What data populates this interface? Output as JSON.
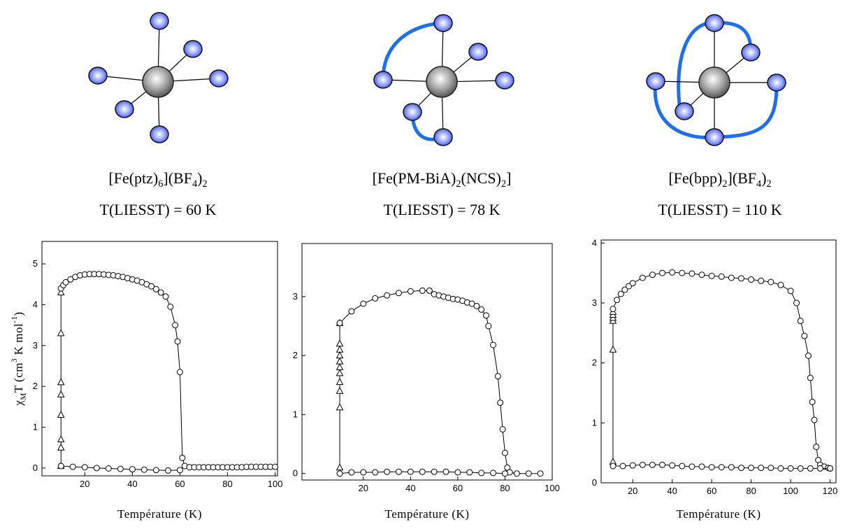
{
  "chart_data": [
    {
      "type": "scatter",
      "title": [
        {
          "text": "[Fe(ptz)"
        },
        {
          "text": "6",
          "sub": true
        },
        {
          "text": "](BF"
        },
        {
          "text": "4",
          "sub": true
        },
        {
          "text": ")"
        },
        {
          "text": "2",
          "sub": true
        }
      ],
      "subtitle": "T(LIESST) = 60 K",
      "xlabel": "Température (K)",
      "ylabel": [
        {
          "text": "χ"
        },
        {
          "text": "M",
          "sub": true
        },
        {
          "text": "T (cm"
        },
        {
          "text": "3",
          "sup": true
        },
        {
          "text": " K mol"
        },
        {
          "text": "-1",
          "sup": true
        },
        {
          "text": ")"
        }
      ],
      "xlim": [
        2,
        101
      ],
      "ylim": [
        -0.19,
        5.55
      ],
      "xticks": [
        20,
        40,
        60,
        80,
        100
      ],
      "yticks": [
        0,
        1,
        2,
        3,
        4,
        5
      ],
      "series": [
        {
          "marker": "triangle",
          "color": "#000000",
          "x": [
            10,
            10,
            10,
            10,
            10,
            10,
            10,
            10
          ],
          "values": [
            0.05,
            0.5,
            0.7,
            1.3,
            1.8,
            2.1,
            3.3,
            4.3
          ]
        },
        {
          "marker": "circle",
          "color": "#000000",
          "x": [
            10,
            11,
            12,
            14,
            16,
            18,
            20,
            22,
            24,
            26,
            28,
            30,
            32,
            34,
            36,
            38,
            40,
            42,
            44,
            46,
            48,
            50,
            52,
            54,
            56,
            58,
            59,
            60,
            61,
            62,
            64,
            66,
            68,
            70,
            72,
            74,
            76,
            78,
            80,
            82,
            84,
            86,
            88,
            90,
            92,
            94,
            96,
            98,
            100
          ],
          "values": [
            4.4,
            4.48,
            4.55,
            4.62,
            4.68,
            4.72,
            4.74,
            4.75,
            4.75,
            4.75,
            4.74,
            4.73,
            4.72,
            4.7,
            4.68,
            4.65,
            4.62,
            4.59,
            4.55,
            4.5,
            4.45,
            4.38,
            4.3,
            4.2,
            3.95,
            3.5,
            3.1,
            2.35,
            0.25,
            0.05,
            0.02,
            0.02,
            0.02,
            0.02,
            0.02,
            0.02,
            0.02,
            0.02,
            0.02,
            0.02,
            0.02,
            0.02,
            0.03,
            0.03,
            0.03,
            0.03,
            0.03,
            0.03,
            0.03
          ]
        },
        {
          "marker": "circle",
          "color": "#000000",
          "x": [
            10,
            15,
            20,
            25,
            30,
            35,
            40,
            45,
            50,
            55,
            60
          ],
          "values": [
            0.05,
            0.03,
            0.02,
            0.0,
            -0.01,
            -0.02,
            -0.03,
            -0.04,
            -0.05,
            -0.06,
            -0.05
          ]
        }
      ]
    },
    {
      "type": "scatter",
      "title": [
        {
          "text": "[Fe(PM-BiA)"
        },
        {
          "text": "2",
          "sub": true
        },
        {
          "text": "(NCS)"
        },
        {
          "text": "2",
          "sub": true
        },
        {
          "text": "]"
        }
      ],
      "subtitle": "T(LIESST) = 78 K",
      "xlabel": "Température (K)",
      "xlim": [
        -6,
        100
      ],
      "ylim": [
        -0.11,
        3.9
      ],
      "xticks": [
        20,
        40,
        60,
        80,
        100
      ],
      "yticks": [
        0,
        1,
        2,
        3
      ],
      "series": [
        {
          "marker": "triangle",
          "color": "#000000",
          "x": [
            10,
            10,
            10,
            10,
            10,
            10,
            10,
            10,
            10,
            10,
            10
          ],
          "values": [
            0.1,
            1.12,
            1.4,
            1.55,
            1.7,
            1.8,
            1.9,
            2.0,
            2.1,
            2.2,
            2.55
          ]
        },
        {
          "marker": "circle",
          "color": "#000000",
          "x": [
            10,
            15,
            20,
            25,
            30,
            35,
            40,
            45,
            48,
            50,
            52,
            54,
            56,
            58,
            60,
            62,
            64,
            66,
            68,
            70,
            72,
            73,
            75,
            77,
            78,
            79,
            80,
            81,
            82,
            85,
            90,
            95
          ],
          "values": [
            2.55,
            2.75,
            2.88,
            2.97,
            3.02,
            3.06,
            3.09,
            3.1,
            3.1,
            3.04,
            3.02,
            3.0,
            2.98,
            2.96,
            2.95,
            2.93,
            2.9,
            2.88,
            2.84,
            2.78,
            2.68,
            2.5,
            2.18,
            1.65,
            1.2,
            0.75,
            0.35,
            0.1,
            0.02,
            0.0,
            0.0,
            0.0
          ]
        },
        {
          "marker": "circle",
          "color": "#000000",
          "x": [
            10,
            15,
            20,
            25,
            30,
            35,
            40,
            45,
            50,
            55,
            60,
            65,
            70,
            75,
            80
          ],
          "values": [
            0.0,
            0.02,
            0.02,
            0.02,
            0.03,
            0.03,
            0.03,
            0.03,
            0.03,
            0.03,
            0.02,
            0.02,
            0.01,
            0.01,
            0.0
          ]
        }
      ]
    },
    {
      "type": "scatter",
      "title": [
        {
          "text": "[Fe(bpp)"
        },
        {
          "text": "2",
          "sub": true
        },
        {
          "text": "](BF"
        },
        {
          "text": "4",
          "sub": true
        },
        {
          "text": ")"
        },
        {
          "text": "2",
          "sub": true
        }
      ],
      "subtitle": "T(LIESST) = 110 K",
      "xlabel": "Température (K)",
      "xlim": [
        4,
        123
      ],
      "ylim": [
        0,
        4.05
      ],
      "xticks": [
        20,
        40,
        60,
        80,
        100,
        120
      ],
      "yticks": [
        0,
        1,
        2,
        3,
        4
      ],
      "series": [
        {
          "marker": "triangle",
          "color": "#000000",
          "x": [
            10,
            10,
            10,
            10,
            10,
            10
          ],
          "values": [
            0.35,
            2.22,
            2.7,
            2.75,
            2.8,
            2.85
          ]
        },
        {
          "marker": "circle",
          "color": "#000000",
          "x": [
            10,
            12,
            14,
            16,
            18,
            20,
            25,
            30,
            35,
            40,
            45,
            50,
            55,
            60,
            65,
            70,
            75,
            80,
            85,
            90,
            95,
            100,
            103,
            105,
            107,
            109,
            110,
            111,
            112,
            113,
            114,
            115,
            117,
            119,
            120
          ],
          "values": [
            2.9,
            3.05,
            3.15,
            3.22,
            3.28,
            3.33,
            3.42,
            3.47,
            3.5,
            3.51,
            3.5,
            3.49,
            3.47,
            3.45,
            3.44,
            3.42,
            3.41,
            3.39,
            3.37,
            3.35,
            3.3,
            3.2,
            3.0,
            2.7,
            2.45,
            2.12,
            1.75,
            1.35,
            1.05,
            0.6,
            0.38,
            0.3,
            0.27,
            0.25,
            0.24
          ]
        },
        {
          "marker": "circle",
          "color": "#000000",
          "x": [
            10,
            15,
            20,
            25,
            30,
            35,
            40,
            45,
            50,
            55,
            60,
            65,
            70,
            75,
            80,
            85,
            90,
            95,
            100,
            105,
            110,
            115,
            120
          ],
          "values": [
            0.28,
            0.28,
            0.29,
            0.3,
            0.3,
            0.3,
            0.29,
            0.28,
            0.27,
            0.27,
            0.26,
            0.26,
            0.26,
            0.25,
            0.25,
            0.25,
            0.25,
            0.24,
            0.24,
            0.24,
            0.24,
            0.24,
            0.24
          ]
        }
      ]
    }
  ]
}
